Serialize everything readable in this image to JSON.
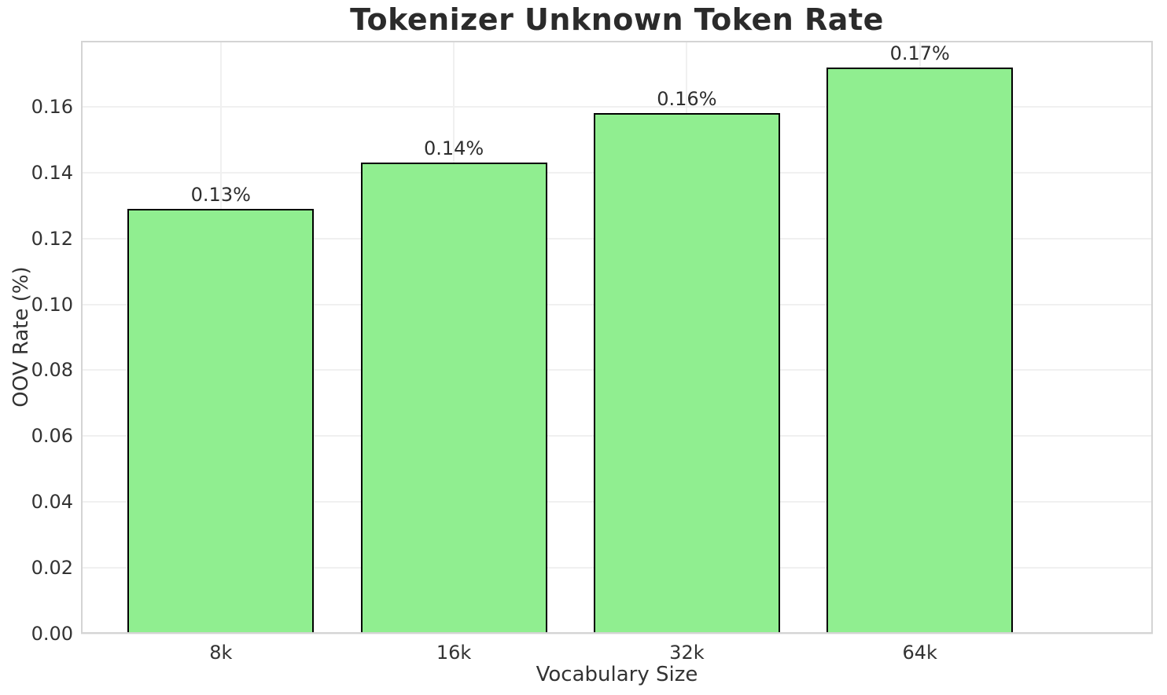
{
  "chart_data": {
    "type": "bar",
    "title": "Tokenizer Unknown Token Rate",
    "xlabel": "Vocabulary Size",
    "ylabel": "OOV Rate (%)",
    "categories": [
      "8k",
      "16k",
      "32k",
      "64k"
    ],
    "values": [
      0.129,
      0.143,
      0.158,
      0.172
    ],
    "bar_labels": [
      "0.13%",
      "0.14%",
      "0.16%",
      "0.17%"
    ],
    "ylim": [
      0,
      0.18
    ],
    "yticks": [
      0.0,
      0.02,
      0.04,
      0.06,
      0.08,
      0.1,
      0.12,
      0.14,
      0.16
    ],
    "ytick_labels": [
      "0.00",
      "0.02",
      "0.04",
      "0.06",
      "0.08",
      "0.10",
      "0.12",
      "0.14",
      "0.16"
    ],
    "grid": true,
    "legend": false,
    "colors": {
      "bar_fill": "#90EE90",
      "bar_edge": "#000000",
      "grid": "#f0f0f0",
      "spine": "#d4d4d4",
      "title_text": "#2b2b2b",
      "tick_text": "#333333",
      "background": "#ffffff"
    }
  }
}
